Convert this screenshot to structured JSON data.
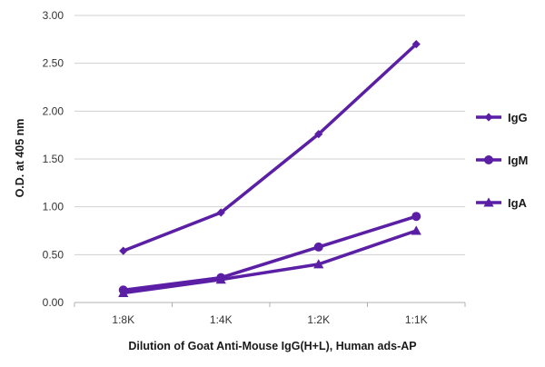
{
  "chart_data": {
    "type": "line",
    "title": "",
    "xlabel": "Dilution of Goat Anti-Mouse IgG(H+L), Human ads-AP",
    "ylabel": "O.D. at 405 nm",
    "categories": [
      "1:8K",
      "1:4K",
      "1:2K",
      "1:1K"
    ],
    "ylim": [
      0,
      3.0
    ],
    "yticks": [
      "0.00",
      "0.50",
      "1.00",
      "1.50",
      "2.00",
      "2.50",
      "3.00"
    ],
    "ytick_values": [
      0,
      0.5,
      1.0,
      1.5,
      2.0,
      2.5,
      3.0
    ],
    "grid": true,
    "legend_position": "right",
    "series": [
      {
        "name": "IgG",
        "marker": "diamond",
        "values": [
          0.54,
          0.94,
          1.76,
          2.7
        ]
      },
      {
        "name": "IgM",
        "marker": "circle",
        "values": [
          0.13,
          0.26,
          0.58,
          0.9
        ]
      },
      {
        "name": "IgA",
        "marker": "triangle",
        "values": [
          0.1,
          0.24,
          0.4,
          0.75
        ]
      }
    ],
    "colors": {
      "series": "#5b1fa6",
      "grid": "#d0d0d0",
      "axis": "#b0b0b0"
    }
  }
}
